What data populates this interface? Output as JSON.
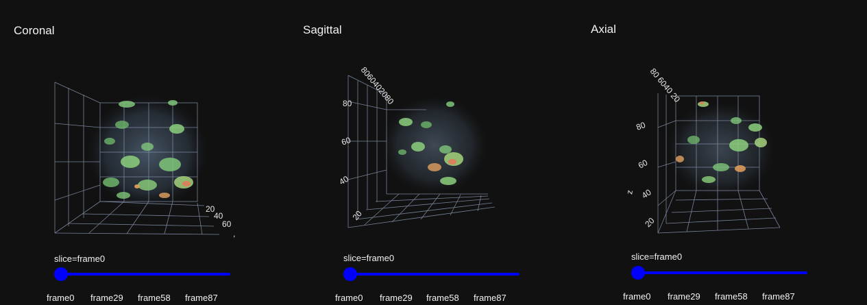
{
  "colors": {
    "background": "#111111",
    "slider": "#0000ff",
    "grid": "#8a97b3",
    "text": "#f2f2f2"
  },
  "panels": [
    {
      "title": "Coronal",
      "axis_ticks": [
        "20",
        "40",
        "60",
        ","
      ],
      "slider": {
        "current_label": "slice=frame0",
        "value": 0,
        "steps": [
          "frame0",
          "frame29",
          "frame58",
          "frame87"
        ]
      }
    },
    {
      "title": "Sagittal",
      "axis_ticks": [
        "80",
        "60",
        "40",
        "20",
        "8060402080"
      ],
      "slider": {
        "current_label": "slice=frame0",
        "value": 0,
        "steps": [
          "frame0",
          "frame29",
          "frame58",
          "frame87"
        ]
      }
    },
    {
      "title": "Axial",
      "axis_ticks": [
        "80",
        "60",
        "40",
        "20",
        "z",
        "80 6040 20"
      ],
      "slider": {
        "current_label": "slice=frame0",
        "value": 0,
        "steps": [
          "frame0",
          "frame29",
          "frame58",
          "frame87"
        ]
      }
    }
  ]
}
